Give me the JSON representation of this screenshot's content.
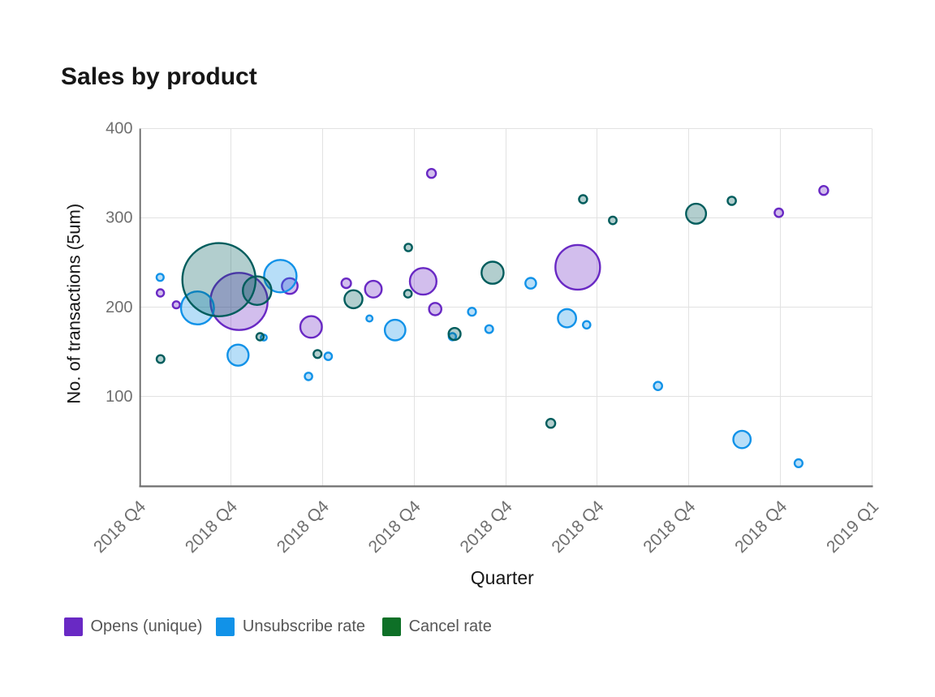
{
  "title": "Sales by product",
  "axes": {
    "x_title": "Quarter",
    "y_title": "No. of transactions (5um)"
  },
  "legend": {
    "items": [
      {
        "label": "Opens (unique)",
        "swatch_color": "#6929c4"
      },
      {
        "label": "Unsubscribe rate",
        "swatch_color": "#1192e8"
      },
      {
        "label": "Cancel rate",
        "swatch_color": "#0e7027"
      }
    ]
  },
  "colors": {
    "title_text": "#161616",
    "axis_title_text": "#161616",
    "tick_text": "#6f6f6f",
    "legend_text": "#565656",
    "gridline": "#e2e2e2",
    "y_axis_line": "#666666",
    "x_axis_line": "#6f6f6f"
  },
  "chart_data": {
    "type": "bubble",
    "title": "Sales by product",
    "xlabel": "Quarter",
    "ylabel": "No. of transactions (5um)",
    "x_tick_labels": [
      "2018 Q4",
      "2018 Q4",
      "2018 Q4",
      "2018 Q4",
      "2018 Q4",
      "2018 Q4",
      "2018 Q4",
      "2018 Q4",
      "2019 Q1"
    ],
    "ylim": [
      0,
      400
    ],
    "y_ticks": [
      400,
      300,
      200,
      100
    ],
    "grid": true,
    "legend_position": "bottom",
    "fill_opacity": 0.3,
    "series": [
      {
        "name": "Opens (unique)",
        "color": "#6929c4",
        "points": [
          {
            "x": 0.231,
            "y": 216.2,
            "r": 4.5
          },
          {
            "x": 0.405,
            "y": 202.8,
            "r": 4.4
          },
          {
            "x": 1.09,
            "y": 206.6,
            "r": 35.2
          },
          {
            "x": 1.643,
            "y": 223.9,
            "r": 9.7
          },
          {
            "x": 1.876,
            "y": 178.1,
            "r": 13.3
          },
          {
            "x": 2.26,
            "y": 227.0,
            "r": 5.9
          },
          {
            "x": 2.556,
            "y": 220.3,
            "r": 10.3
          },
          {
            "x": 3.1,
            "y": 229.2,
            "r": 16.4
          },
          {
            "x": 3.19,
            "y": 350.0,
            "r": 5.5
          },
          {
            "x": 3.231,
            "y": 198.1,
            "r": 7.6
          },
          {
            "x": 4.787,
            "y": 244.9,
            "r": 27.5
          },
          {
            "x": 6.982,
            "y": 305.9,
            "r": 5.2
          },
          {
            "x": 7.472,
            "y": 330.9,
            "r": 5.5
          }
        ]
      },
      {
        "name": "Unsubscribe rate",
        "color": "#1192e8",
        "points": [
          {
            "x": 0.229,
            "y": 233.6,
            "r": 4.4
          },
          {
            "x": 0.636,
            "y": 199.4,
            "r": 20.3
          },
          {
            "x": 1.079,
            "y": 146.5,
            "r": 13.0
          },
          {
            "x": 1.36,
            "y": 166.2,
            "r": 3.7
          },
          {
            "x": 1.541,
            "y": 235.0,
            "r": 20.0
          },
          {
            "x": 1.848,
            "y": 122.7,
            "r": 4.6
          },
          {
            "x": 2.063,
            "y": 145.2,
            "r": 4.6
          },
          {
            "x": 2.513,
            "y": 187.6,
            "r": 3.8
          },
          {
            "x": 2.793,
            "y": 174.6,
            "r": 12.7
          },
          {
            "x": 3.419,
            "y": 167.2,
            "r": 4.5
          },
          {
            "x": 3.632,
            "y": 195.1,
            "r": 4.9
          },
          {
            "x": 3.82,
            "y": 175.7,
            "r": 4.8
          },
          {
            "x": 4.274,
            "y": 227.0,
            "r": 6.6
          },
          {
            "x": 4.67,
            "y": 187.8,
            "r": 11.2
          },
          {
            "x": 4.884,
            "y": 180.5,
            "r": 4.6
          },
          {
            "x": 5.663,
            "y": 112.0,
            "r": 5.1
          },
          {
            "x": 6.58,
            "y": 52.1,
            "r": 10.7
          },
          {
            "x": 7.197,
            "y": 25.5,
            "r": 4.9
          }
        ]
      },
      {
        "name": "Cancel rate",
        "color": "#005d5d",
        "points": [
          {
            "x": 0.233,
            "y": 142.1,
            "r": 4.8
          },
          {
            "x": 0.871,
            "y": 231.0,
            "r": 45.1
          },
          {
            "x": 1.287,
            "y": 218.7,
            "r": 17.6
          },
          {
            "x": 1.319,
            "y": 167.1,
            "r": 4.5
          },
          {
            "x": 1.946,
            "y": 147.8,
            "r": 4.9
          },
          {
            "x": 2.339,
            "y": 209.1,
            "r": 11.1
          },
          {
            "x": 2.938,
            "y": 267.0,
            "r": 4.6
          },
          {
            "x": 2.933,
            "y": 215.3,
            "r": 4.7
          },
          {
            "x": 3.443,
            "y": 170.2,
            "r": 7.4
          },
          {
            "x": 3.857,
            "y": 238.8,
            "r": 13.6
          },
          {
            "x": 4.493,
            "y": 70.2,
            "r": 5.5
          },
          {
            "x": 4.845,
            "y": 321.1,
            "r": 5.0
          },
          {
            "x": 5.169,
            "y": 297.4,
            "r": 4.7
          },
          {
            "x": 6.078,
            "y": 304.8,
            "r": 12.3
          },
          {
            "x": 6.468,
            "y": 319.3,
            "r": 5.1
          }
        ]
      }
    ]
  }
}
